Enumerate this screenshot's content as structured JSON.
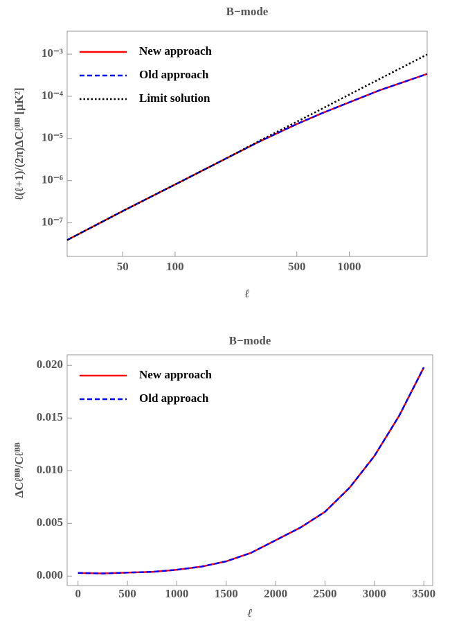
{
  "chart_data": [
    {
      "type": "line",
      "title": "B−mode",
      "x_label": "ℓ",
      "y_label": "ℓ(ℓ+1)/(2π)ΔCℓᴮᴮ [μK²]",
      "x_log": true,
      "y_log": true,
      "legend": "upper left",
      "xlim": [
        24,
        2800
      ],
      "ylim": [
        1.6e-08,
        0.0035
      ],
      "xticks": [
        50,
        100,
        500,
        1000
      ],
      "yticks": [
        {
          "value": 1e-07,
          "label": "10⁻⁷"
        },
        {
          "value": 1e-06,
          "label": "10⁻⁶"
        },
        {
          "value": 1e-05,
          "label": "10⁻⁵"
        },
        {
          "value": 0.0001,
          "label": "10⁻⁴"
        },
        {
          "value": 0.001,
          "label": "10⁻³"
        }
      ],
      "x": [
        24,
        50,
        100,
        200,
        300,
        500,
        700,
        1000,
        1500,
        2000,
        2800
      ],
      "series": [
        {
          "name": "New approach",
          "color": "#ff0000",
          "dash": "solid",
          "values": [
            3.9e-08,
            1.9e-07,
            8.1e-07,
            3.5e-06,
            8.2e-06,
            2.2e-05,
            4e-05,
            7.2e-05,
            0.00014,
            0.00021,
            0.00034
          ]
        },
        {
          "name": "Old approach",
          "color": "#0000ff",
          "dash": "dashed",
          "values": [
            3.9e-08,
            1.9e-07,
            8.1e-07,
            3.5e-06,
            8.2e-06,
            2.2e-05,
            4e-05,
            7.2e-05,
            0.00014,
            0.00021,
            0.00034
          ]
        },
        {
          "name": "Limit solution",
          "color": "#000000",
          "dash": "dotted",
          "values": [
            3.9e-08,
            1.9e-07,
            8.1e-07,
            3.5e-06,
            8.5e-06,
            2.5e-05,
            5.1e-05,
            0.00011,
            0.00026,
            0.00048,
            0.00098
          ]
        }
      ]
    },
    {
      "type": "line",
      "title": "B−mode",
      "x_label": "ℓ",
      "y_label": "ΔCℓᴮᴮ/Cℓᴮᴮ",
      "x_log": false,
      "y_log": false,
      "legend": "upper left",
      "xlim": [
        -110,
        3590
      ],
      "ylim": [
        -0.0009,
        0.021
      ],
      "xticks": [
        0,
        500,
        1000,
        1500,
        2000,
        2500,
        3000,
        3500
      ],
      "yticks": [
        {
          "value": 0,
          "label": "0.000"
        },
        {
          "value": 0.005,
          "label": "0.005"
        },
        {
          "value": 0.01,
          "label": "0.010"
        },
        {
          "value": 0.015,
          "label": "0.015"
        },
        {
          "value": 0.02,
          "label": "0.020"
        }
      ],
      "x": [
        0,
        250,
        500,
        750,
        1000,
        1250,
        1500,
        1750,
        2000,
        2250,
        2500,
        2750,
        3000,
        3250,
        3500
      ],
      "series": [
        {
          "name": "New approach",
          "color": "#ff0000",
          "dash": "solid",
          "values": [
            0.0003,
            0.00025,
            0.00033,
            0.0004,
            0.0006,
            0.0009,
            0.0014,
            0.0022,
            0.0034,
            0.0046,
            0.0061,
            0.0084,
            0.0114,
            0.0152,
            0.0198
          ]
        },
        {
          "name": "Old approach",
          "color": "#0000ff",
          "dash": "dashed",
          "values": [
            0.0003,
            0.00025,
            0.00033,
            0.0004,
            0.0006,
            0.0009,
            0.0014,
            0.0022,
            0.0034,
            0.0046,
            0.0061,
            0.0084,
            0.0114,
            0.0152,
            0.0198
          ]
        }
      ]
    }
  ]
}
